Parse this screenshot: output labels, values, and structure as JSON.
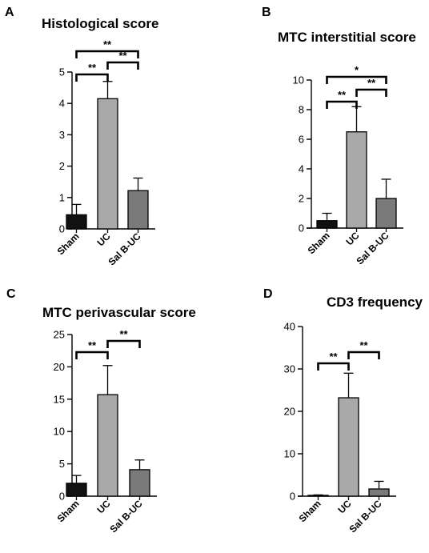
{
  "chart_data": [
    {
      "panel": "A",
      "type": "bar",
      "title": "Histological score",
      "categories": [
        "Sham",
        "UC",
        "Sal B-UC"
      ],
      "values": [
        0.45,
        4.15,
        1.22
      ],
      "errors": [
        0.33,
        0.55,
        0.4
      ],
      "ylim": [
        0,
        5
      ],
      "yticks": [
        0,
        1,
        2,
        3,
        4,
        5
      ],
      "bar_colors": [
        "#111111",
        "#a9a9a9",
        "#7a7a7a"
      ],
      "significance": [
        {
          "from": 0,
          "to": 1,
          "label": "**"
        },
        {
          "from": 1,
          "to": 2,
          "label": "**"
        },
        {
          "from": 0,
          "to": 2,
          "label": "**"
        }
      ]
    },
    {
      "panel": "B",
      "type": "bar",
      "title": "MTC interstitial  score",
      "categories": [
        "Sham",
        "UC",
        "Sal B-UC"
      ],
      "values": [
        0.5,
        6.5,
        2.0
      ],
      "errors": [
        0.5,
        1.7,
        1.3
      ],
      "ylim": [
        0,
        10
      ],
      "yticks": [
        0,
        2,
        4,
        6,
        8,
        10
      ],
      "bar_colors": [
        "#111111",
        "#a9a9a9",
        "#7a7a7a"
      ],
      "significance": [
        {
          "from": 0,
          "to": 1,
          "label": "**"
        },
        {
          "from": 1,
          "to": 2,
          "label": "**"
        },
        {
          "from": 0,
          "to": 2,
          "label": "*"
        }
      ]
    },
    {
      "panel": "C",
      "type": "bar",
      "title": "MTC perivascular score",
      "categories": [
        "Sham",
        "UC",
        "Sal B-UC"
      ],
      "values": [
        2.0,
        15.7,
        4.1
      ],
      "errors": [
        1.2,
        4.5,
        1.5
      ],
      "ylim": [
        0,
        25
      ],
      "yticks": [
        0,
        5,
        10,
        15,
        20,
        25
      ],
      "bar_colors": [
        "#111111",
        "#a9a9a9",
        "#7a7a7a"
      ],
      "significance": [
        {
          "from": 0,
          "to": 1,
          "label": "**"
        },
        {
          "from": 1,
          "to": 2,
          "label": "**"
        }
      ]
    },
    {
      "panel": "D",
      "type": "bar",
      "title": "CD3 frequency",
      "categories": [
        "Sham",
        "UC",
        "Sal B-UC"
      ],
      "values": [
        0.2,
        23.2,
        1.7
      ],
      "errors": [
        0.1,
        5.8,
        1.8
      ],
      "ylim": [
        0,
        40
      ],
      "yticks": [
        0,
        10,
        20,
        30,
        40
      ],
      "bar_colors": [
        "#111111",
        "#a9a9a9",
        "#7a7a7a"
      ],
      "significance": [
        {
          "from": 0,
          "to": 1,
          "label": "**"
        },
        {
          "from": 1,
          "to": 2,
          "label": "**"
        }
      ]
    }
  ]
}
